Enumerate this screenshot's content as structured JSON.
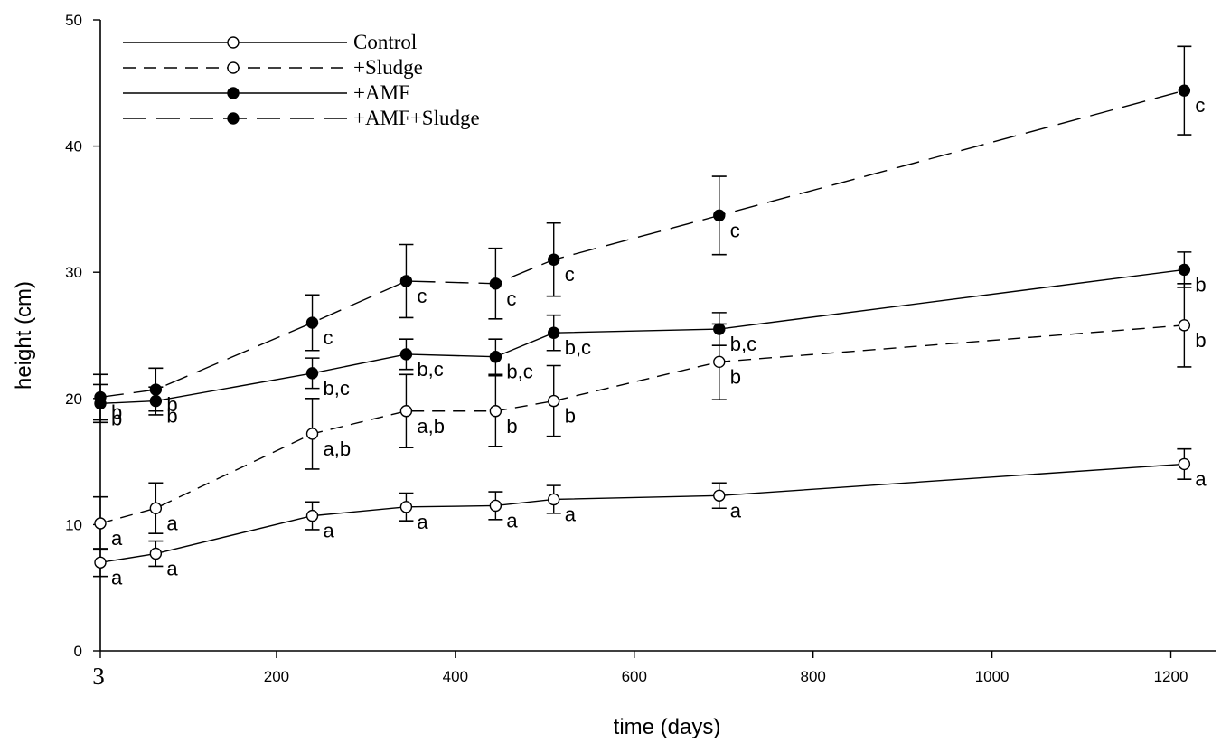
{
  "chart_data": {
    "type": "line",
    "title": "",
    "xlabel": "time (days)",
    "ylabel": "height (cm)",
    "xlim": [
      3,
      1250
    ],
    "ylim": [
      0,
      50
    ],
    "x_ticks": [
      {
        "value": 3,
        "label": "3"
      },
      {
        "value": 200,
        "label": "200"
      },
      {
        "value": 400,
        "label": "400"
      },
      {
        "value": 600,
        "label": "600"
      },
      {
        "value": 800,
        "label": "800"
      },
      {
        "value": 1000,
        "label": "1000"
      },
      {
        "value": 1200,
        "label": "1200"
      }
    ],
    "y_ticks": [
      0,
      10,
      20,
      30,
      40,
      50
    ],
    "grid": false,
    "legend_position": "top-left",
    "x": [
      3,
      65,
      240,
      345,
      445,
      510,
      695,
      1215
    ],
    "series": [
      {
        "name": "Control",
        "style": "solid",
        "marker": "open",
        "values": [
          7.0,
          7.7,
          10.7,
          11.4,
          11.5,
          12.0,
          12.3,
          14.8
        ],
        "errors": [
          1.1,
          1.0,
          1.1,
          1.1,
          1.1,
          1.1,
          1.0,
          1.2
        ],
        "labels": [
          "a",
          "a",
          "a",
          "a",
          "a",
          "a",
          "a",
          "a"
        ]
      },
      {
        "name": "+Sludge",
        "style": "dashed",
        "marker": "open",
        "values": [
          10.1,
          11.3,
          17.2,
          19.0,
          19.0,
          19.8,
          22.9,
          25.8
        ],
        "errors": [
          2.1,
          2.0,
          2.8,
          2.9,
          2.8,
          2.8,
          3.0,
          3.3
        ],
        "labels": [
          "a",
          "a",
          "a,b",
          "a,b",
          "b",
          "b",
          "b",
          "b"
        ]
      },
      {
        "name": "+AMF",
        "style": "solid",
        "marker": "filled",
        "values": [
          19.6,
          19.8,
          22.0,
          23.5,
          23.3,
          25.2,
          25.5,
          30.2
        ],
        "errors": [
          1.5,
          1.1,
          1.2,
          1.2,
          1.4,
          1.4,
          1.3,
          1.4
        ],
        "labels": [
          "b",
          "b",
          "b,c",
          "b,c",
          "b,c",
          "b,c",
          "b,c",
          "b"
        ]
      },
      {
        "name": "+AMF+Sludge",
        "style": "longdash",
        "marker": "filled",
        "values": [
          20.1,
          20.7,
          26.0,
          29.3,
          29.1,
          31.0,
          34.5,
          44.4
        ],
        "errors": [
          1.8,
          1.7,
          2.2,
          2.9,
          2.8,
          2.9,
          3.1,
          3.5
        ],
        "labels": [
          "b",
          "b",
          "c",
          "c",
          "c",
          "c",
          "c",
          "c"
        ]
      }
    ]
  }
}
